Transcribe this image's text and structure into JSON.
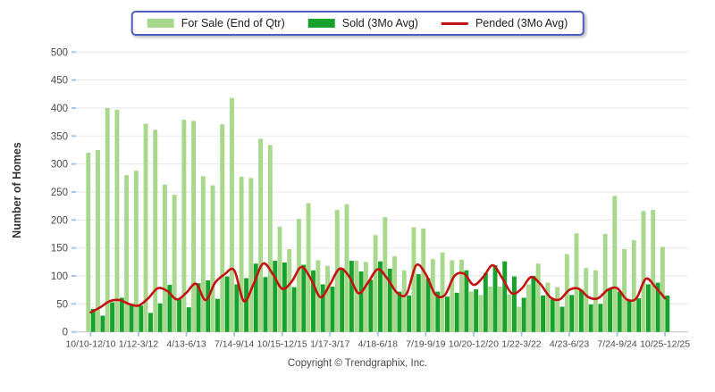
{
  "legend": {
    "items": [
      {
        "label": "For Sale (End of Qtr)",
        "type": "bar",
        "color": "#a7d88c"
      },
      {
        "label": "Sold (3Mo Avg)",
        "type": "bar",
        "color": "#17a22d"
      },
      {
        "label": "Pended (3Mo Avg)",
        "type": "line",
        "color": "#c41212"
      }
    ]
  },
  "y_axis": {
    "title": "Number of Homes"
  },
  "footer": {
    "copyright": "Copyright © Trendgraphix, Inc."
  },
  "chart_data": {
    "type": "bar",
    "title": "",
    "xlabel": "",
    "ylabel": "Number of Homes",
    "ylim": [
      0,
      500
    ],
    "y_tick_step": 50,
    "grid": true,
    "legend_position": "top-center",
    "n_quarters": 61,
    "x_tick_labels": [
      "10/10-12/10",
      "1/12-3/12",
      "4/13-6/13",
      "7/14-9/14",
      "10/15-12/15",
      "1/17-3/17",
      "4/18-6/18",
      "7/19-9/19",
      "10/20-12/20",
      "1/22-3/22",
      "4/23-6/23",
      "7/24-9/24",
      "10/25-12/25"
    ],
    "x_tick_indices": [
      0,
      5,
      10,
      15,
      20,
      25,
      30,
      35,
      40,
      45,
      50,
      55,
      60
    ],
    "series": [
      {
        "name": "For Sale (End of Qtr)",
        "type": "bar",
        "color": "#a7d88c",
        "values": [
          320,
          325,
          400,
          397,
          280,
          288,
          372,
          361,
          263,
          245,
          379,
          377,
          278,
          262,
          371,
          418,
          277,
          275,
          345,
          334,
          188,
          148,
          202,
          230,
          128,
          118,
          218,
          228,
          127,
          125,
          173,
          205,
          135,
          110,
          187,
          185,
          130,
          142,
          128,
          129,
          72,
          66,
          81,
          81,
          67,
          45,
          85,
          122,
          88,
          80,
          139,
          176,
          114,
          110,
          175,
          243,
          148,
          164,
          216,
          218,
          152
        ]
      },
      {
        "name": "Sold (3Mo Avg)",
        "type": "bar",
        "color": "#17a22d",
        "values": [
          41,
          29,
          53,
          61,
          49,
          47,
          34,
          51,
          84,
          58,
          44,
          87,
          92,
          59,
          99,
          85,
          96,
          122,
          98,
          127,
          124,
          80,
          120,
          110,
          85,
          81,
          114,
          127,
          108,
          93,
          126,
          113,
          72,
          65,
          103,
          96,
          72,
          63,
          70,
          110,
          76,
          105,
          119,
          126,
          99,
          61,
          100,
          65,
          58,
          45,
          66,
          75,
          49,
          50,
          78,
          72,
          58,
          60,
          85,
          88,
          65
        ]
      },
      {
        "name": "Pended (3Mo Avg)",
        "type": "line",
        "color": "#c41212",
        "values": [
          35,
          44,
          55,
          57,
          50,
          47,
          60,
          78,
          73,
          58,
          70,
          86,
          57,
          88,
          103,
          110,
          55,
          85,
          122,
          104,
          77,
          90,
          116,
          95,
          62,
          85,
          113,
          99,
          69,
          89,
          112,
          95,
          70,
          68,
          119,
          103,
          67,
          66,
          100,
          104,
          84,
          98,
          119,
          96,
          69,
          77,
          98,
          85,
          62,
          58,
          75,
          77,
          62,
          60,
          75,
          78,
          58,
          60,
          95,
          80,
          60
        ]
      }
    ],
    "style": {
      "gridline_color": "#ebebeb",
      "axis_line_color": "#c9c9c9",
      "tick_color": "#a9c6e7",
      "axis_text_color": "#4a4a4a"
    }
  }
}
